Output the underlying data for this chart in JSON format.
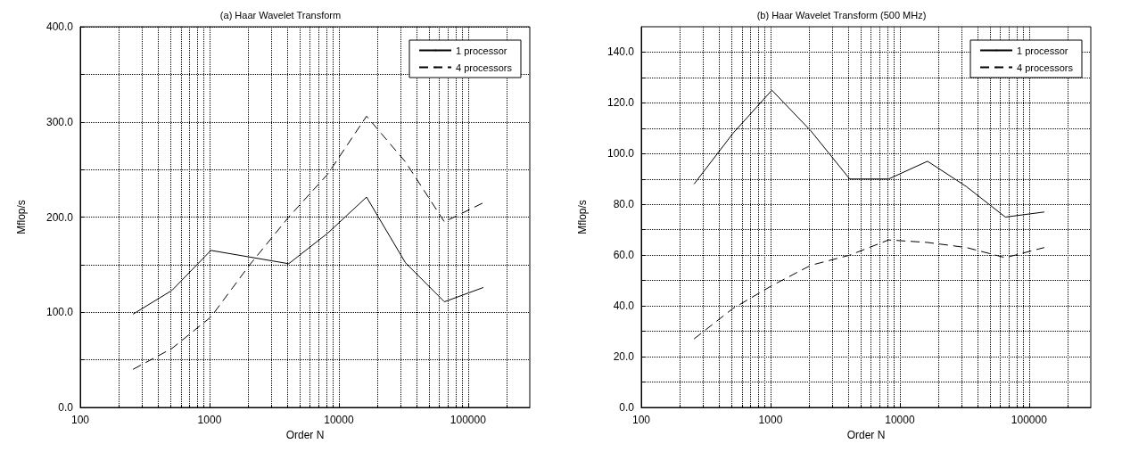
{
  "chart_data": [
    {
      "type": "line",
      "title": "(a) Haar Wavelet Transform",
      "xlabel": "Order N",
      "ylabel": "Mflop/s",
      "log": "x",
      "x": [
        256,
        512,
        1024,
        2048,
        4096,
        8192,
        16384,
        32768,
        65536,
        131072
      ],
      "series": [
        {
          "name": "1 processor",
          "color": "#000000",
          "line_style": "solid",
          "values": [
            98,
            123,
            165,
            158,
            151,
            183,
            221,
            152,
            111,
            126
          ]
        },
        {
          "name": "4 processors",
          "color": "#000000",
          "line_style": "dashed",
          "values": [
            40,
            62,
            95,
            150,
            200,
            245,
            306,
            258,
            195,
            215
          ]
        }
      ],
      "xlim": [
        100,
        300000
      ],
      "xticks": [
        100,
        1000,
        10000,
        100000
      ],
      "ylim": [
        0,
        400
      ],
      "yticks": [
        {
          "value": 0,
          "label": "0.0"
        },
        {
          "value": 50,
          "label": null
        },
        {
          "value": 100,
          "label": "100.0"
        },
        {
          "value": 150,
          "label": null
        },
        {
          "value": 200,
          "label": "200.0"
        },
        {
          "value": 250,
          "label": null
        },
        {
          "value": 300,
          "label": "300.0"
        },
        {
          "value": 350,
          "label": null
        },
        {
          "value": 400,
          "label": "400.0"
        }
      ],
      "grid": true,
      "legend": "top right",
      "marker": "none"
    },
    {
      "type": "line",
      "title": "(b) Haar Wavelet Transform (500 MHz)",
      "xlabel": "Order N",
      "ylabel": "Mflop/s",
      "log": "x",
      "x": [
        256,
        512,
        1024,
        2048,
        4096,
        8192,
        16384,
        32768,
        65536,
        131072
      ],
      "series": [
        {
          "name": "1 processor",
          "color": "#000000",
          "line_style": "solid",
          "values": [
            88,
            108,
            125,
            109,
            90,
            90,
            97,
            87,
            75,
            77
          ]
        },
        {
          "name": "4 processors",
          "color": "#000000",
          "line_style": "dashed",
          "values": [
            27,
            39,
            48,
            56,
            60,
            66,
            65,
            63,
            59,
            63
          ]
        }
      ],
      "xlim": [
        100,
        300000
      ],
      "xticks": [
        100,
        1000,
        10000,
        100000
      ],
      "ylim": [
        0,
        150
      ],
      "yticks": [
        {
          "value": 0,
          "label": "0.0"
        },
        {
          "value": 10,
          "label": null
        },
        {
          "value": 20,
          "label": "20.0"
        },
        {
          "value": 30,
          "label": null
        },
        {
          "value": 40,
          "label": "40.0"
        },
        {
          "value": 50,
          "label": null
        },
        {
          "value": 60,
          "label": "60.0"
        },
        {
          "value": 70,
          "label": null
        },
        {
          "value": 80,
          "label": "80.0"
        },
        {
          "value": 90,
          "label": null
        },
        {
          "value": 100,
          "label": "100.0"
        },
        {
          "value": 110,
          "label": null
        },
        {
          "value": 120,
          "label": "120.0"
        },
        {
          "value": 130,
          "label": null
        },
        {
          "value": 140,
          "label": "140.0"
        }
      ],
      "grid": true,
      "legend": "top right",
      "marker": "none"
    }
  ]
}
